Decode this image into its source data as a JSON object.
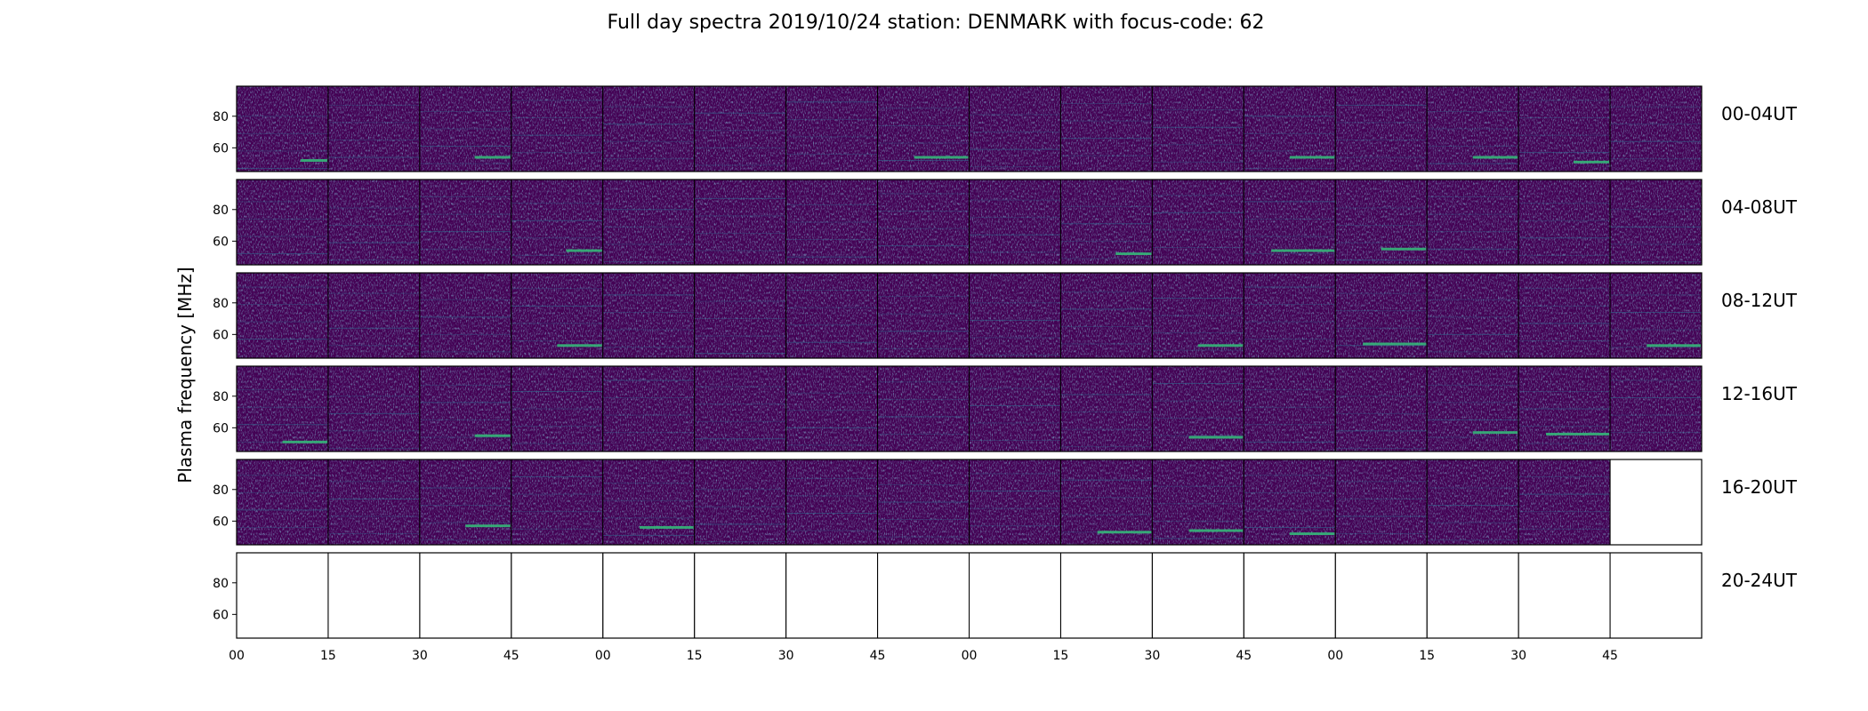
{
  "chart_data": {
    "type": "heatmap",
    "title": "Full day spectra 2019/10/24 station: DENMARK with focus-code: 62",
    "ylabel": "Plasma frequency [MHz]",
    "xlabel": "",
    "ylim": [
      45,
      99
    ],
    "yticks": [
      60,
      80
    ],
    "xtick_labels": [
      "00",
      "15",
      "30",
      "45",
      "00",
      "15",
      "30",
      "45",
      "00",
      "15",
      "30",
      "45",
      "00",
      "15",
      "30",
      "45"
    ],
    "panels_per_row": 16,
    "panel_minutes": 15,
    "colormap": "viridis",
    "colors": {
      "background": "#440154",
      "mid": "#31688e",
      "bright": "#35b779",
      "frame": "#000000"
    },
    "rows": [
      {
        "label": "00-04UT",
        "panels_with_data": 16,
        "bright_bands": [
          [
            0,
            52,
            0.3
          ],
          [
            2,
            54,
            0.4
          ],
          [
            7,
            54,
            0.6
          ],
          [
            11,
            54,
            0.5
          ],
          [
            13,
            54,
            0.5
          ],
          [
            14,
            51,
            0.4
          ]
        ]
      },
      {
        "label": "04-08UT",
        "panels_with_data": 16,
        "bright_bands": [
          [
            3,
            54,
            0.4
          ],
          [
            9,
            52,
            0.4
          ],
          [
            11,
            54,
            0.7
          ],
          [
            12,
            55,
            0.5
          ]
        ]
      },
      {
        "label": "08-12UT",
        "panels_with_data": 16,
        "bright_bands": [
          [
            3,
            53,
            0.5
          ],
          [
            10,
            53,
            0.5
          ],
          [
            12,
            54,
            0.7
          ],
          [
            15,
            53,
            0.6
          ]
        ]
      },
      {
        "label": "12-16UT",
        "panels_with_data": 16,
        "bright_bands": [
          [
            0,
            51,
            0.5
          ],
          [
            2,
            55,
            0.4
          ],
          [
            10,
            54,
            0.6
          ],
          [
            13,
            57,
            0.5
          ],
          [
            14,
            56,
            0.7
          ]
        ]
      },
      {
        "label": "16-20UT",
        "panels_with_data": 15,
        "bright_bands": [
          [
            2,
            57,
            0.5
          ],
          [
            4,
            56,
            0.6
          ],
          [
            9,
            53,
            0.6
          ],
          [
            10,
            54,
            0.6
          ],
          [
            11,
            52,
            0.5
          ]
        ]
      },
      {
        "label": "20-24UT",
        "panels_with_data": 0,
        "bright_bands": []
      }
    ]
  }
}
